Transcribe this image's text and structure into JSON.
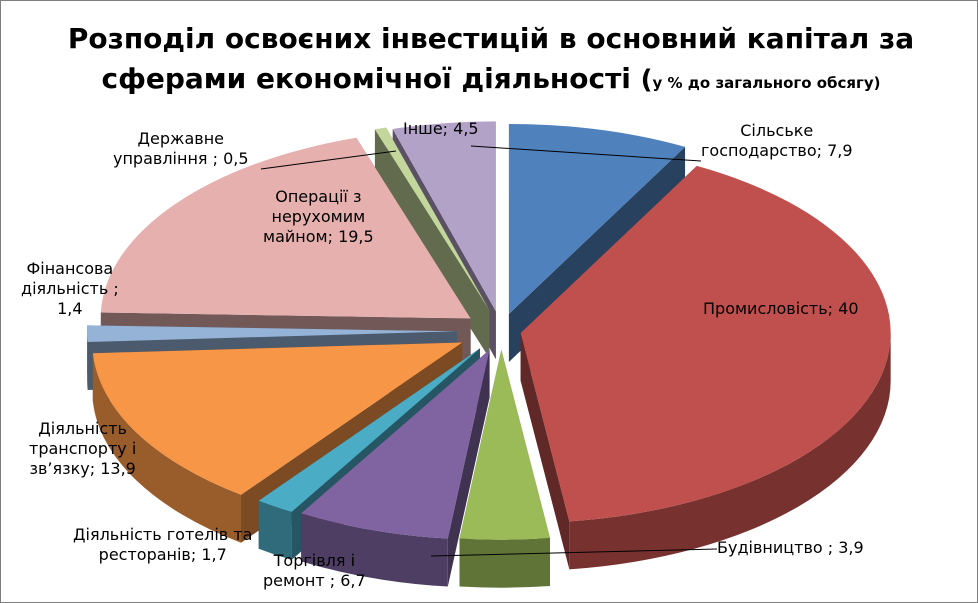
{
  "chart_data": {
    "type": "pie",
    "title_line1": "Розподіл освоєних інвестицій в основний капітал за",
    "title_line2": "сферами економічної діяльності",
    "title_paren_open": "(",
    "subtitle": "у % до загального обсягу)",
    "slices": [
      {
        "label": "Сільське господарство; 7,9",
        "value": 7.9,
        "color": "#4F81BD"
      },
      {
        "label": "Промисловість; 40",
        "value": 40,
        "color": "#C0504D"
      },
      {
        "label": "Будівництво ; 3,9",
        "value": 3.9,
        "color": "#9BBB59"
      },
      {
        "label": "Торгівля і ремонт ; 6,7",
        "value": 6.7,
        "color": "#8064A2"
      },
      {
        "label": "Діяльність готелів та ресторанів; 1,7",
        "value": 1.7,
        "color": "#4BACC6"
      },
      {
        "label": "Діяльність транспорту і зв’язку; 13,9",
        "value": 13.9,
        "color": "#F79646"
      },
      {
        "label": "Фінансова діяльність ; 1,4",
        "value": 1.4,
        "color": "#95B3D7"
      },
      {
        "label": "Операції з нерухомим майном; 19,5",
        "value": 19.5,
        "color": "#E6B0AF"
      },
      {
        "label": "Державне управління ; 0,5",
        "value": 0.5,
        "color": "#C3D69B"
      },
      {
        "label": "Інше; 4,5",
        "value": 4.5,
        "color": "#B3A2C7"
      }
    ]
  },
  "labels": {
    "agri": "Сільське\nгосподарство; 7,9",
    "industry": "Промисловість; 40",
    "construction": "Будівництво ; 3,9",
    "trade": "Торгівля і\nремонт ; 6,7",
    "hotels": "Діяльність готелів та\nресторанів; 1,7",
    "transport": "Діяльність\nтранспорту і\nзв’язку; 13,9",
    "finance": "Фінансова\nдіяльність ;\n1,4",
    "realestate": "Операції з\nнерухомим\nмайном; 19,5",
    "government": "Державне\nуправління ; 0,5",
    "other": "Інше; 4,5"
  }
}
